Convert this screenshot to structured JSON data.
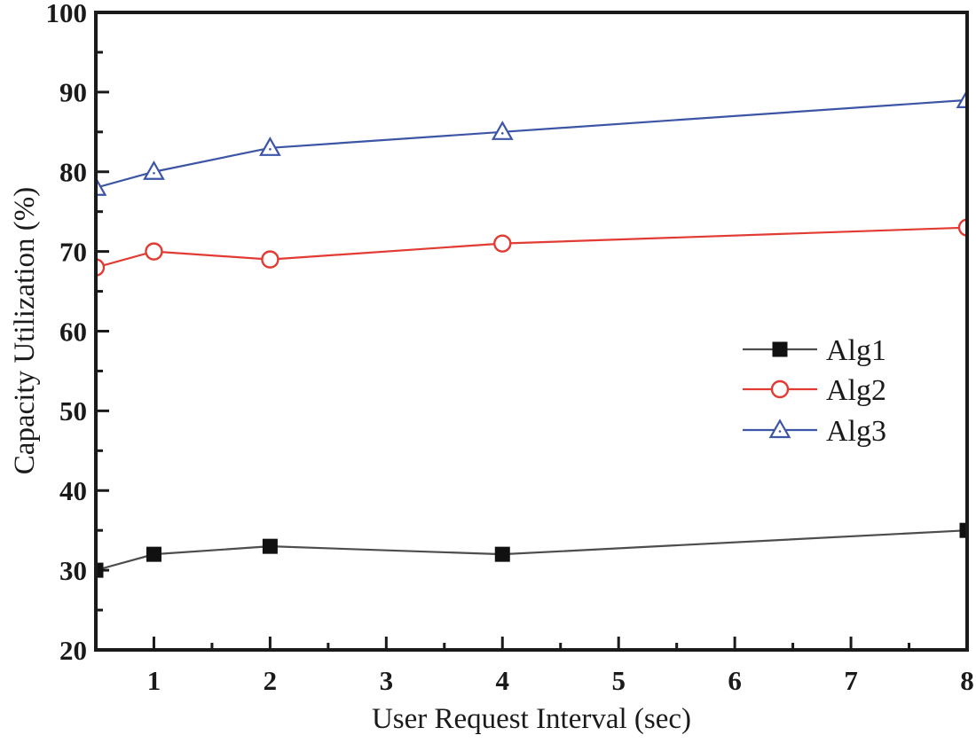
{
  "colors": {
    "background": "#ffffff",
    "axis": "#1a1a1a",
    "text": "#1a1a1a"
  },
  "chart_data": {
    "type": "line",
    "title": "",
    "xlabel": "User Request Interval (sec)",
    "ylabel": "Capacity Utilization (%)",
    "xlim": [
      0.5,
      8
    ],
    "ylim": [
      20,
      100
    ],
    "x_ticks": [
      1,
      2,
      3,
      4,
      5,
      6,
      7,
      8
    ],
    "y_ticks": [
      20,
      30,
      40,
      50,
      60,
      70,
      80,
      90,
      100
    ],
    "x_minor_step": 0.5,
    "y_minor_step": 5,
    "grid": false,
    "legend_position": "center-right",
    "x": [
      0.5,
      1,
      2,
      4,
      8
    ],
    "series": [
      {
        "name": "Alg1",
        "marker": "filled-square",
        "line_color": "#4d4d4d",
        "marker_color": "#111111",
        "values": [
          30,
          32,
          33,
          32,
          35
        ]
      },
      {
        "name": "Alg2",
        "marker": "open-circle",
        "line_color": "#e23b33",
        "marker_color": "#e23b33",
        "values": [
          68,
          70,
          69,
          71,
          73
        ]
      },
      {
        "name": "Alg3",
        "marker": "open-triangle",
        "line_color": "#3d55a6",
        "marker_color": "#3d55a6",
        "values": [
          78,
          80,
          83,
          85,
          89
        ]
      }
    ]
  }
}
